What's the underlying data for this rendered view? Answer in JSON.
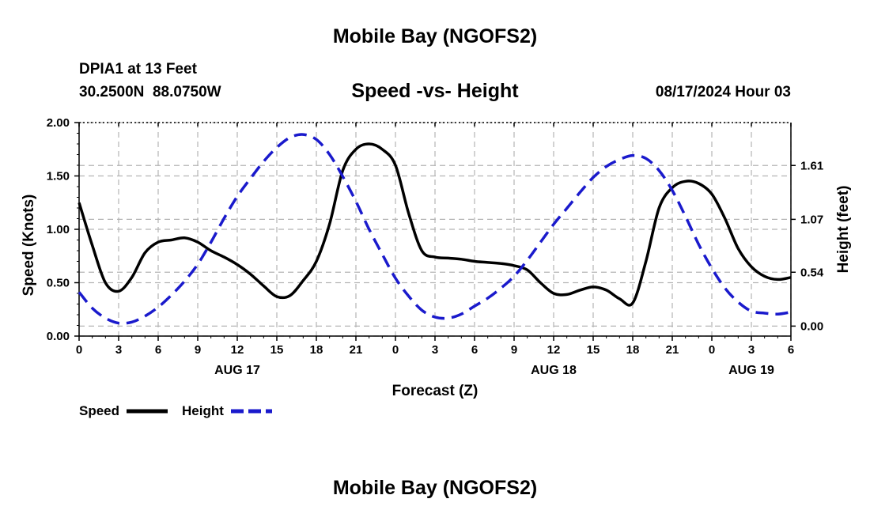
{
  "header": {
    "title": "Mobile Bay (NGOFS2)",
    "station": "DPIA1 at 13 Feet",
    "coords": "30.2500N  88.0750W",
    "chart_title": "Speed -vs- Height",
    "timestamp": "08/17/2024 Hour 03"
  },
  "footer": {
    "title": "Mobile Bay (NGOFS2)"
  },
  "chart_data": {
    "type": "line",
    "title": "Speed -vs- Height",
    "xlabel": "Forecast (Z)",
    "ylabel": "Speed (Knots)",
    "y2label": "Height (feet)",
    "ylim": [
      0,
      2
    ],
    "y2lim": [
      -0.1,
      2.04
    ],
    "yticks": [
      "0.00",
      "0.50",
      "1.00",
      "1.50",
      "2.00"
    ],
    "y2ticks": [
      0.0,
      0.54,
      1.07,
      1.61
    ],
    "y2tick_labels": [
      "0.00",
      "0.54",
      "1.07",
      "1.61"
    ],
    "x_hours_range": [
      0,
      54
    ],
    "xtick_labels": [
      "0",
      "3",
      "6",
      "9",
      "12",
      "15",
      "18",
      "21",
      "0",
      "3",
      "6",
      "9",
      "12",
      "15",
      "18",
      "21",
      "0",
      "3",
      "6"
    ],
    "date_labels": [
      {
        "hour": 12,
        "label": "AUG 17"
      },
      {
        "hour": 36,
        "label": "AUG 18"
      },
      {
        "hour": 51,
        "label": "AUG 19"
      }
    ],
    "grid": true,
    "legend_position": "bottom-left",
    "series": [
      {
        "name": "Speed",
        "color": "#000000",
        "style": "solid",
        "axis": "left",
        "x": [
          0,
          1,
          2,
          3,
          4,
          5,
          6,
          7,
          8,
          9,
          10,
          11,
          12,
          13,
          14,
          15,
          16,
          17,
          18,
          19,
          20,
          21,
          22,
          23,
          24,
          25,
          26,
          27,
          28,
          29,
          30,
          31,
          32,
          33,
          34,
          35,
          36,
          37,
          38,
          39,
          40,
          41,
          42,
          43,
          44,
          45,
          46,
          47,
          48,
          49,
          50,
          51,
          52,
          53,
          54
        ],
        "y": [
          1.25,
          0.85,
          0.5,
          0.42,
          0.55,
          0.78,
          0.88,
          0.9,
          0.92,
          0.88,
          0.8,
          0.74,
          0.67,
          0.58,
          0.47,
          0.37,
          0.38,
          0.52,
          0.7,
          1.05,
          1.55,
          1.75,
          1.8,
          1.75,
          1.6,
          1.15,
          0.8,
          0.74,
          0.73,
          0.72,
          0.7,
          0.69,
          0.68,
          0.66,
          0.62,
          0.5,
          0.4,
          0.39,
          0.43,
          0.46,
          0.43,
          0.35,
          0.31,
          0.7,
          1.2,
          1.39,
          1.45,
          1.43,
          1.33,
          1.1,
          0.82,
          0.65,
          0.56,
          0.53,
          0.55
        ]
      },
      {
        "name": "Height",
        "color": "#1a1acc",
        "style": "dashed",
        "axis": "right",
        "x": [
          0,
          1,
          2,
          3,
          4,
          5,
          6,
          7,
          8,
          9,
          10,
          11,
          12,
          13,
          14,
          15,
          16,
          17,
          18,
          19,
          20,
          21,
          22,
          23,
          24,
          25,
          26,
          27,
          28,
          29,
          30,
          31,
          32,
          33,
          34,
          35,
          36,
          37,
          38,
          39,
          40,
          41,
          42,
          43,
          44,
          45,
          46,
          47,
          48,
          49,
          50,
          51,
          52,
          53,
          54
        ],
        "y": [
          0.34,
          0.18,
          0.08,
          0.03,
          0.04,
          0.1,
          0.19,
          0.31,
          0.45,
          0.62,
          0.84,
          1.08,
          1.3,
          1.48,
          1.65,
          1.79,
          1.89,
          1.92,
          1.87,
          1.72,
          1.5,
          1.25,
          0.97,
          0.72,
          0.48,
          0.3,
          0.16,
          0.09,
          0.08,
          0.12,
          0.2,
          0.28,
          0.38,
          0.5,
          0.66,
          0.84,
          1.02,
          1.18,
          1.34,
          1.49,
          1.6,
          1.67,
          1.71,
          1.68,
          1.56,
          1.36,
          1.1,
          0.82,
          0.58,
          0.38,
          0.24,
          0.15,
          0.13,
          0.12,
          0.14
        ]
      }
    ]
  }
}
